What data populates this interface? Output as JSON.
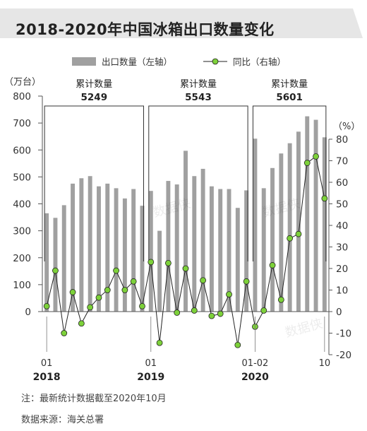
{
  "title": "2018-2020年中国冰箱出口数量变化",
  "note": "注：最新统计数据截至2020年10月",
  "source": "数据来源：海关总署",
  "watermark": "数据侠",
  "colors": {
    "bar": "#a0a0a0",
    "line": "#222222",
    "marker": "#7dd13a",
    "title_bg": "#e6e6e6"
  },
  "chart_data": {
    "type": "bar+line",
    "legend": {
      "bar": "出口数量（左轴）",
      "line": "同比（右轴）",
      "position": "top"
    },
    "left_axis": {
      "unit": "（万台）",
      "lim": [
        0,
        800
      ],
      "ticks": [
        "0",
        "100",
        "200",
        "300",
        "400",
        "500",
        "600",
        "700",
        "800"
      ]
    },
    "right_axis": {
      "unit": "（%）",
      "lim": [
        -20,
        85
      ],
      "ticks": [
        "-20",
        "-10",
        "0",
        "10",
        "20",
        "30",
        "40",
        "50",
        "60",
        "70",
        "80"
      ]
    },
    "x_tick_labels": [
      {
        "index": 0,
        "label": "01"
      },
      {
        "index": 12,
        "label": "01"
      },
      {
        "index": 24,
        "label": "01-02"
      },
      {
        "index": 32,
        "label": "10"
      }
    ],
    "year_labels": [
      {
        "index": 0,
        "label": "2018"
      },
      {
        "index": 12,
        "label": "2019"
      },
      {
        "index": 24,
        "label": "2020"
      }
    ],
    "annotations": [
      {
        "label": "累计数量",
        "value": "5249",
        "from": 0,
        "to": 11
      },
      {
        "label": "累计数量",
        "value": "5543",
        "from": 12,
        "to": 23
      },
      {
        "label": "累计数量",
        "value": "5601",
        "from": 24,
        "to": 32
      }
    ],
    "series": [
      {
        "name": "出口数量（左轴）",
        "axis": "left",
        "values": [
          365,
          348,
          395,
          475,
          495,
          503,
          465,
          475,
          458,
          420,
          455,
          393,
          448,
          300,
          485,
          472,
          597,
          503,
          530,
          465,
          455,
          455,
          385,
          450,
          642,
          458,
          533,
          587,
          625,
          668,
          725,
          712,
          647
        ]
      },
      {
        "name": "同比（右轴）",
        "axis": "right",
        "values": [
          2.5,
          19,
          -10,
          9,
          -5.5,
          2,
          6.5,
          10,
          19,
          10,
          14,
          2.5,
          23,
          -14.5,
          22.5,
          -0.5,
          20,
          0.5,
          14.5,
          -2,
          -1,
          8,
          -15.5,
          14,
          -7,
          0.5,
          21.5,
          5.5,
          34,
          36,
          69,
          72,
          52.5
        ]
      }
    ]
  }
}
